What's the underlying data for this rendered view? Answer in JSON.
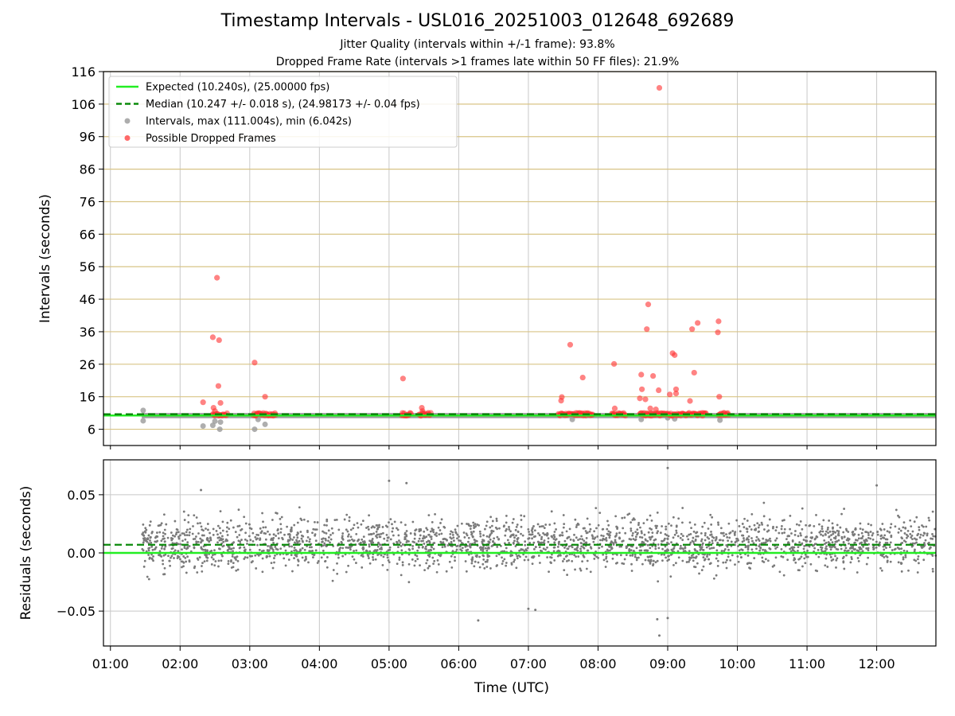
{
  "figure": {
    "title": "Timestamp Intervals - USL016_20251003_012648_692689",
    "subtitle_jitter": "Jitter Quality (intervals within +/-1 frame): 93.8%",
    "subtitle_dropped": "Dropped Frame Rate (intervals >1 frames late within 50 FF files): 21.9%"
  },
  "chart_data": [
    {
      "type": "scatter",
      "title": "Timestamp Intervals - USL016_20251003_012648_692689",
      "xlabel": "Time (UTC)",
      "ylabel": "Intervals (seconds)",
      "xlim": [
        0.9,
        12.85
      ],
      "ylim": [
        1,
        116
      ],
      "yticks": [
        6,
        16,
        26,
        36,
        46,
        56,
        66,
        76,
        86,
        96,
        106,
        116
      ],
      "grid": true,
      "legend_position": "top-left",
      "legend": [
        {
          "label": "Expected (10.240s), (25.00000 fps)",
          "kind": "line",
          "color": "#22ee22"
        },
        {
          "label": "Median (10.247 +/- 0.018 s), (24.98173 +/- 0.04 fps)",
          "kind": "dashed",
          "color": "#0a8a0a"
        },
        {
          "label": "Intervals, max (111.004s), min (6.042s)",
          "kind": "dot",
          "color": "#999999"
        },
        {
          "label": "Possible Dropped Frames",
          "kind": "dot",
          "color": "#ff4444"
        }
      ],
      "expected": 10.24,
      "median": 10.247,
      "intervals_band": {
        "x_start": 1.45,
        "x_end": 12.85,
        "y_low": 9.4,
        "y_high": 11.0
      },
      "intervals_outliers": {
        "x": [
          1.47,
          1.47,
          2.33,
          2.47,
          2.5,
          2.57,
          2.58,
          3.07,
          3.12,
          3.22,
          7.63,
          8.62,
          9.0,
          9.1,
          9.75
        ],
        "y": [
          11.8,
          8.6,
          7.0,
          7.2,
          8.5,
          6.0,
          8.2,
          6.0,
          9.0,
          7.5,
          9.0,
          9.0,
          9.5,
          9.2,
          8.8
        ]
      },
      "dropped_frames": {
        "x": [
          2.33,
          2.47,
          2.48,
          2.5,
          2.53,
          2.55,
          2.56,
          2.58,
          3.07,
          3.1,
          3.22,
          5.2,
          5.47,
          5.48,
          7.47,
          7.48,
          7.6,
          7.78,
          8.23,
          8.24,
          8.6,
          8.62,
          8.63,
          8.68,
          8.7,
          8.72,
          8.75,
          8.79,
          8.83,
          8.87,
          9.03,
          9.07,
          9.1,
          9.12,
          9.12,
          9.32,
          9.35,
          9.38,
          9.43,
          9.72,
          9.73,
          9.74,
          8.88
        ],
        "y": [
          14.3,
          34.3,
          12.6,
          11.6,
          52.6,
          19.3,
          33.4,
          14.1,
          26.5,
          10.5,
          16.0,
          21.6,
          12.6,
          11.6,
          14.8,
          15.9,
          32.0,
          21.9,
          26.1,
          12.4,
          15.5,
          22.8,
          18.3,
          15.2,
          36.8,
          44.4,
          12.4,
          22.4,
          12.1,
          18.0,
          16.7,
          29.4,
          28.8,
          18.3,
          17.0,
          14.7,
          36.8,
          23.4,
          38.7,
          35.8,
          39.2,
          16.0,
          111.0
        ]
      },
      "dropped_runs": [
        {
          "x_start": 2.47,
          "x_end": 2.68
        },
        {
          "x_start": 3.05,
          "x_end": 3.38
        },
        {
          "x_start": 5.18,
          "x_end": 5.32
        },
        {
          "x_start": 5.43,
          "x_end": 5.6
        },
        {
          "x_start": 7.43,
          "x_end": 7.93
        },
        {
          "x_start": 8.2,
          "x_end": 8.4
        },
        {
          "x_start": 8.6,
          "x_end": 9.55
        },
        {
          "x_start": 9.73,
          "x_end": 9.88
        }
      ]
    },
    {
      "type": "scatter",
      "xlabel": "Time (UTC)",
      "ylabel": "Residuals (seconds)",
      "xlim": [
        0.9,
        12.85
      ],
      "ylim": [
        -0.08,
        0.08
      ],
      "yticks": [
        0.05,
        0.0,
        -0.05
      ],
      "ytick_labels": [
        "0.05",
        "0.00",
        "−0.05"
      ],
      "xticks": [
        1,
        2,
        3,
        4,
        5,
        6,
        7,
        8,
        9,
        10,
        11,
        12
      ],
      "xtick_labels": [
        "01:00",
        "02:00",
        "03:00",
        "04:00",
        "05:00",
        "06:00",
        "07:00",
        "08:00",
        "09:00",
        "10:00",
        "11:00",
        "12:00"
      ],
      "grid": true,
      "expected_residual": 0.0,
      "median_residual": 0.007,
      "residual_x_range": [
        1.45,
        12.85
      ],
      "residual_center": 0.008,
      "residual_spread": 0.015,
      "residual_outliers": {
        "x": [
          9.0,
          8.85,
          8.88,
          9.0,
          6.28,
          7.0,
          7.1,
          5.25,
          5.0,
          2.3,
          12.0
        ],
        "y": [
          0.073,
          -0.057,
          -0.071,
          -0.056,
          -0.058,
          -0.048,
          -0.049,
          0.06,
          0.062,
          0.054,
          0.058
        ]
      }
    }
  ]
}
